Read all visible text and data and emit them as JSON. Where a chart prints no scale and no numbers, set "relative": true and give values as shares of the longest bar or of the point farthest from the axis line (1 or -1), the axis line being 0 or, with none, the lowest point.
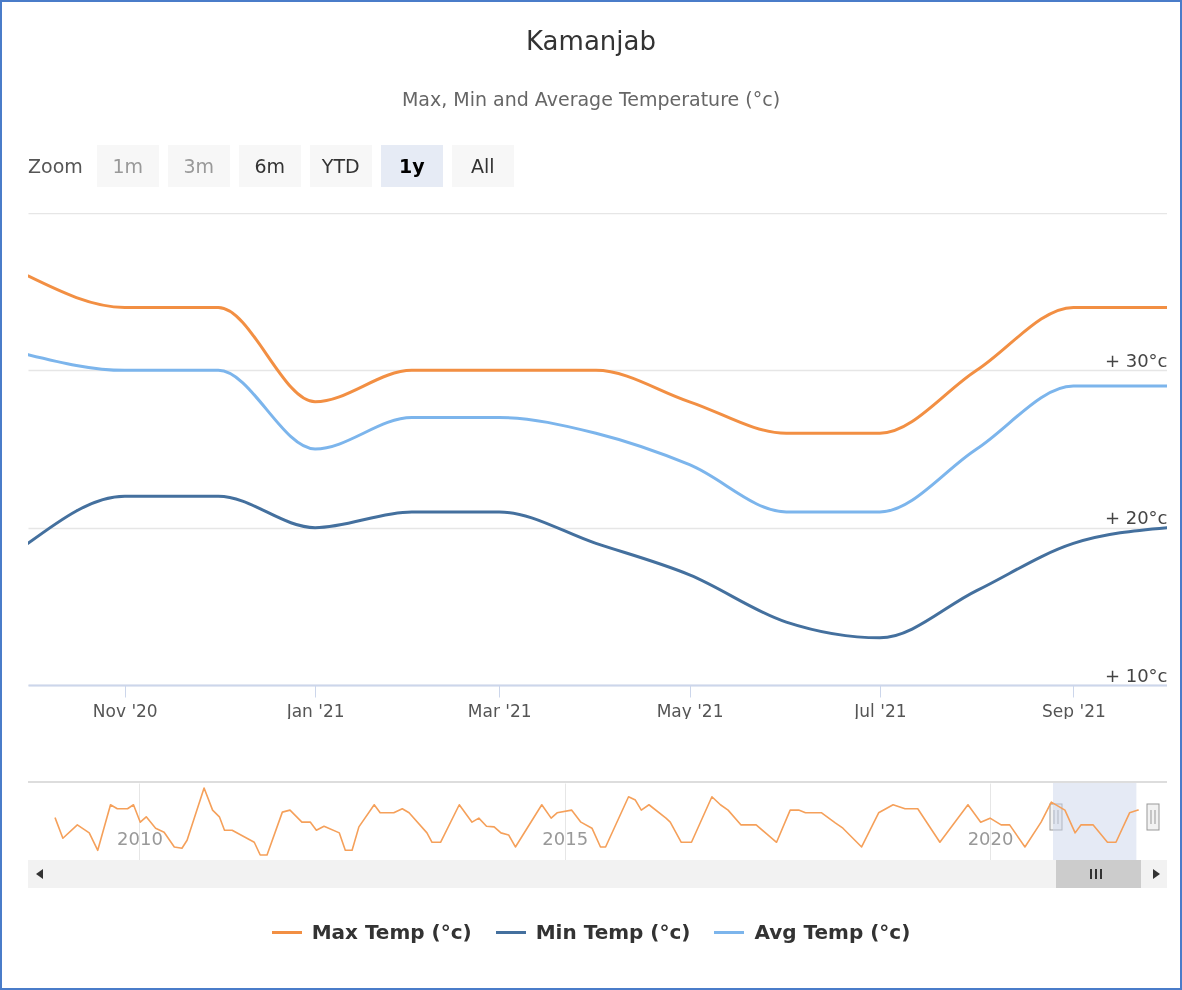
{
  "chart_data": [
    {
      "type": "line",
      "title": "Kamanjab",
      "subtitle": "Max, Min and Average Temperature (°c)",
      "annotations": [
        "Zoom",
        "1m",
        "3m",
        "6m",
        "YTD",
        "1y",
        "All"
      ],
      "x": [
        "2020-10-01",
        "2020-11-01",
        "2020-12-01",
        "2021-01-01",
        "2021-02-01",
        "2021-03-01",
        "2021-04-01",
        "2021-05-01",
        "2021-06-01",
        "2021-07-01",
        "2021-08-01",
        "2021-09-01",
        "2021-10-01"
      ],
      "series": [
        {
          "name": "Max Temp (°c)",
          "color": "#f28f43",
          "values": [
            36,
            34,
            34,
            28,
            30,
            30,
            30,
            28,
            26,
            26,
            30,
            34,
            34
          ]
        },
        {
          "name": "Min Temp (°c)",
          "color": "#44709e",
          "values": [
            19,
            22,
            22,
            20,
            21,
            21,
            19,
            17,
            14,
            13,
            16,
            19,
            20
          ]
        },
        {
          "name": "Avg Temp (°c)",
          "color": "#7cb5ec",
          "values": [
            31,
            30,
            30,
            25,
            27,
            27,
            26,
            24,
            21,
            21,
            25,
            29,
            29
          ]
        }
      ],
      "xlim": [
        "2020-10-01",
        "2021-10-01"
      ],
      "xticks": [
        {
          "value": "2020-11-01",
          "label": "Nov '20"
        },
        {
          "value": "2021-01-01",
          "label": "Jan '21"
        },
        {
          "value": "2021-03-01",
          "label": "Mar '21"
        },
        {
          "value": "2021-05-01",
          "label": "May '21"
        },
        {
          "value": "2021-07-01",
          "label": "Jul '21"
        },
        {
          "value": "2021-09-01",
          "label": "Sep '21"
        }
      ],
      "ylim": [
        10,
        40
      ],
      "yticks": [
        {
          "value": 10,
          "label": "+ 10°c"
        },
        {
          "value": 20,
          "label": "+ 20°c"
        },
        {
          "value": 30,
          "label": "+ 30°c"
        },
        {
          "value": 40,
          "label": null
        }
      ],
      "grid": "y",
      "legend": "bottom"
    },
    {
      "type": "line",
      "relative": true,
      "x": [
        2009.01,
        2009.1,
        2009.27,
        2009.41,
        2009.51,
        2009.66,
        2009.74,
        2009.86,
        2009.93,
        2010.01,
        2010.08,
        2010.19,
        2010.29,
        2010.41,
        2010.5,
        2010.56,
        2010.76,
        2010.86,
        2010.94,
        2011.0,
        2011.09,
        2011.35,
        2011.42,
        2011.5,
        2011.68,
        2011.77,
        2011.91,
        2012.01,
        2012.08,
        2012.17,
        2012.35,
        2012.42,
        2012.5,
        2012.58,
        2012.76,
        2012.83,
        2012.99,
        2013.09,
        2013.17,
        2013.38,
        2013.44,
        2013.54,
        2013.76,
        2013.91,
        2013.99,
        2014.08,
        2014.17,
        2014.25,
        2014.34,
        2014.42,
        2014.73,
        2014.84,
        2014.91,
        2015.08,
        2015.19,
        2015.32,
        2015.42,
        2015.48,
        2015.75,
        2015.83,
        2015.9,
        2015.99,
        2016.19,
        2016.24,
        2016.37,
        2016.49,
        2016.73,
        2016.83,
        2016.92,
        2017.07,
        2017.25,
        2017.36,
        2017.49,
        2017.65,
        2017.75,
        2017.83,
        2018.02,
        2018.18,
        2018.27,
        2018.49,
        2018.69,
        2018.86,
        2019.0,
        2019.15,
        2019.41,
        2019.74,
        2019.89,
        2020.0,
        2020.13,
        2020.23,
        2020.41,
        2020.6,
        2020.72,
        2020.88,
        2021.0,
        2021.07,
        2021.21,
        2021.38,
        2021.48,
        2021.64,
        2021.74
      ],
      "series": [
        {
          "color": "#f5a05a",
          "values": [
            0.55,
            0.25,
            0.45,
            0.33,
            0.07,
            0.75,
            0.69,
            0.69,
            0.75,
            0.49,
            0.57,
            0.4,
            0.34,
            0.12,
            0.1,
            0.22,
            1,
            0.67,
            0.57,
            0.37,
            0.37,
            0.19,
            0,
            0,
            0.64,
            0.67,
            0.49,
            0.49,
            0.37,
            0.43,
            0.33,
            0.07,
            0.07,
            0.42,
            0.75,
            0.63,
            0.63,
            0.69,
            0.63,
            0.33,
            0.19,
            0.19,
            0.75,
            0.49,
            0.55,
            0.43,
            0.42,
            0.33,
            0.3,
            0.12,
            0.75,
            0.55,
            0.63,
            0.67,
            0.49,
            0.4,
            0.12,
            0.12,
            0.87,
            0.82,
            0.67,
            0.75,
            0.55,
            0.49,
            0.19,
            0.19,
            0.87,
            0.75,
            0.67,
            0.45,
            0.45,
            0.33,
            0.19,
            0.67,
            0.67,
            0.63,
            0.63,
            0.48,
            0.4,
            0.12,
            0.63,
            0.75,
            0.69,
            0.69,
            0.19,
            0.75,
            0.49,
            0.55,
            0.45,
            0.45,
            0.12,
            0.49,
            0.79,
            0.67,
            0.33,
            0.45,
            0.45,
            0.19,
            0.19,
            0.63,
            0.67
          ]
        }
      ],
      "xlim": [
        2008.69,
        2022.08
      ],
      "xticks": [
        2010,
        2015,
        2020
      ],
      "grid": "x",
      "bands": [
        {
          "axis": "x",
          "from": 2020.74,
          "to": 2021.72,
          "color": "#ccd6eb"
        }
      ]
    }
  ]
}
